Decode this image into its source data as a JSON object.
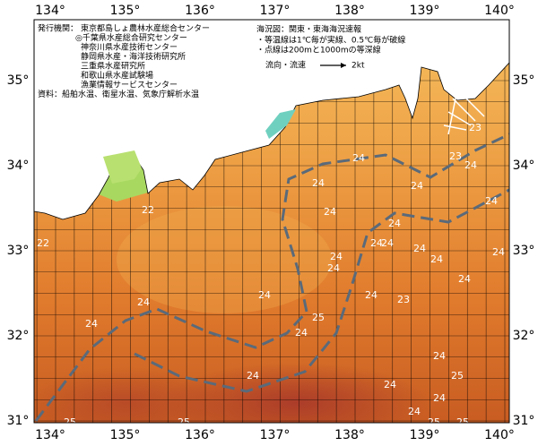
{
  "longitude_labels": [
    "134°",
    "135°",
    "136°",
    "137°",
    "138°",
    "139°",
    "140°"
  ],
  "latitude_labels": [
    "35°",
    "34°",
    "33°",
    "32°",
    "31°"
  ],
  "legend": {
    "publisher_label": "発行機関：",
    "publishers": [
      "東京都島しょ農林水産総合センター",
      "◎千葉県水産総合研究センター",
      "神奈川県水産技術センター",
      "静岡県水産・海洋技術研究所",
      "三重県水産研究所",
      "和歌山県水産試験場",
      "漁業情報サービスセンター"
    ],
    "source": "資料：船舶水温、衛星水温、気象庁解析水温"
  },
  "chart_info": {
    "title": "海況図：関東・東海海況速報",
    "notes": [
      "・等温線は1℃毎が実線、0.5℃毎が破線",
      "・点線は200mと1000mの等深線"
    ],
    "current_label": "流向・流速",
    "current_scale": "2kt"
  },
  "isotherm_labels": [
    "22",
    "22",
    "23",
    "23",
    "24",
    "24",
    "24",
    "24",
    "24",
    "24",
    "24",
    "24",
    "24",
    "24",
    "24",
    "24",
    "24",
    "24",
    "24",
    "24",
    "23",
    "24",
    "25",
    "24",
    "24",
    "24",
    "24",
    "25",
    "24",
    "24",
    "24",
    "24",
    "25",
    "25",
    "25",
    "25"
  ]
}
